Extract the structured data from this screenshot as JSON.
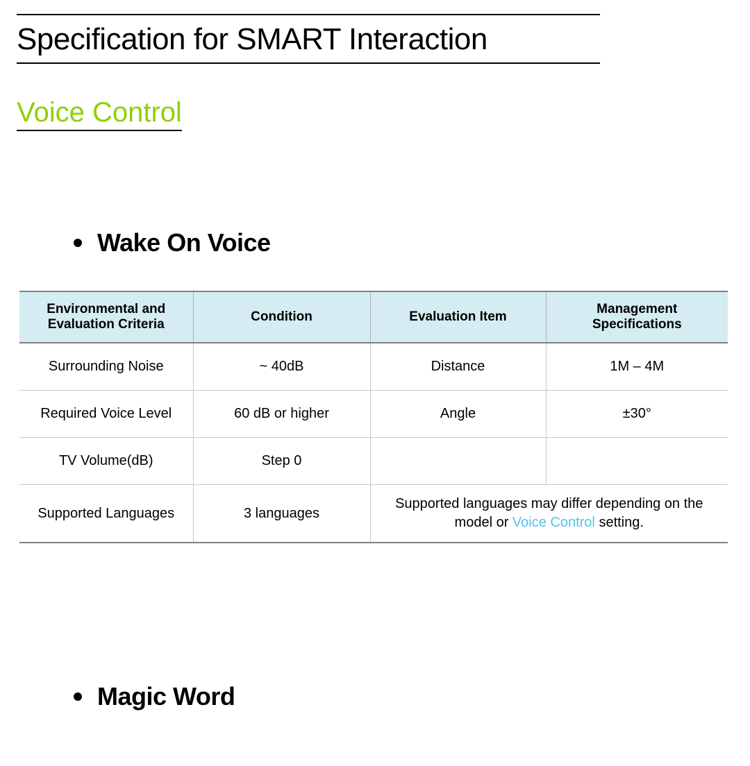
{
  "title": "Specification for SMART Interaction",
  "section": "Voice Control",
  "bullets": {
    "wake": "Wake On Voice",
    "magic": "Magic Word"
  },
  "table": {
    "columns": [
      "Environmental and Evaluation Criteria",
      "Condition",
      "Evaluation Item",
      "Management Specifications"
    ],
    "rows": [
      [
        "Surrounding Noise",
        "~ 40dB",
        "Distance",
        "1M – 4M"
      ],
      [
        "Required Voice Level",
        "60 dB or higher",
        "Angle",
        "±30°"
      ],
      [
        "TV Volume(dB)",
        "Step 0",
        "",
        ""
      ],
      [
        "Supported Languages",
        "3 languages",
        "",
        ""
      ]
    ],
    "note_prefix": "Supported languages may differ depending on the model or ",
    "note_link": "Voice Control",
    "note_suffix": " setting.",
    "header_bg": "#d5ecf3",
    "border_color_strong": "#808080",
    "border_color_light": "#c8c8c8",
    "link_color": "#4fc3e8",
    "accent_color": "#8ed000"
  }
}
